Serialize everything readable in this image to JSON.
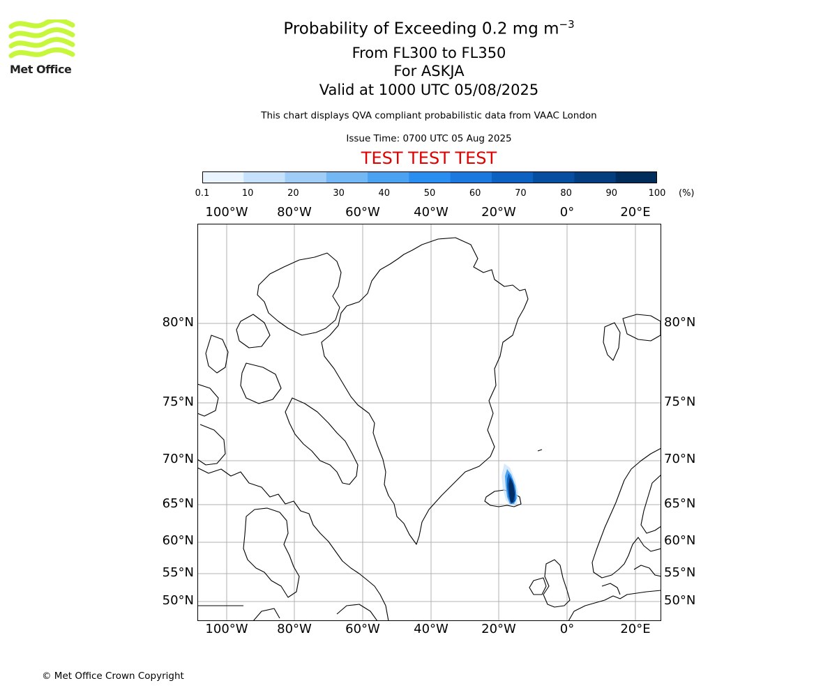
{
  "header": {
    "title_text": "Probability of Exceeding 0.2 mg m",
    "title_exponent": "−3",
    "flight_levels": "From FL300 to FL350",
    "volcano_line": "For ASKJA",
    "valid_time": "Valid at 1000 UTC 05/08/2025",
    "source_note": "This chart displays QVA compliant probabilistic data from VAAC London",
    "issue_time": "Issue Time: 0700 UTC 05 Aug 2025",
    "test_banner": "TEST TEST TEST"
  },
  "logo": {
    "text": "Met Office",
    "color": "#c6f73a"
  },
  "legend": {
    "ticks": [
      "0.1",
      "10",
      "20",
      "30",
      "40",
      "50",
      "60",
      "70",
      "80",
      "90",
      "100"
    ],
    "unit": "(%)",
    "colors": [
      "#eaf4fe",
      "#c5e1fb",
      "#a0cdf8",
      "#74b7f5",
      "#4aa2f1",
      "#2a8ef0",
      "#1a78de",
      "#0d61c0",
      "#064e9f",
      "#033f80",
      "#012d5d"
    ]
  },
  "map": {
    "lon_labels": [
      "100°W",
      "80°W",
      "60°W",
      "40°W",
      "20°W",
      "0°",
      "20°E"
    ],
    "lat_labels": [
      "80°N",
      "75°N",
      "70°N",
      "65°N",
      "60°N",
      "55°N",
      "50°N"
    ]
  },
  "footer": {
    "copyright": "© Met Office Crown Copyright"
  }
}
